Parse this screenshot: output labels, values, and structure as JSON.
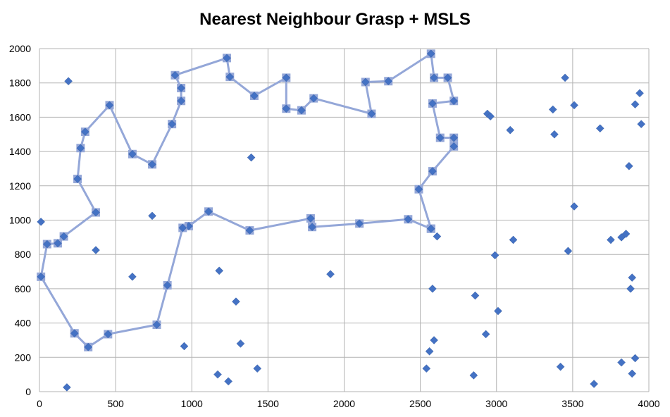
{
  "chart_data": {
    "type": "scatter",
    "title": "Nearest Neighbour Grasp + MSLS",
    "xlim": [
      0,
      4000
    ],
    "ylim": [
      0,
      2000
    ],
    "x_ticks": [
      0,
      500,
      1000,
      1500,
      2000,
      2500,
      3000,
      3500,
      4000
    ],
    "y_ticks": [
      0,
      200,
      400,
      600,
      800,
      1000,
      1200,
      1400,
      1600,
      1800,
      2000
    ],
    "grid": true,
    "tour": [
      [
        2570,
        950
      ],
      [
        2420,
        1005
      ],
      [
        2100,
        980
      ],
      [
        1790,
        960
      ],
      [
        1780,
        1010
      ],
      [
        1380,
        940
      ],
      [
        1110,
        1050
      ],
      [
        980,
        965
      ],
      [
        940,
        955
      ],
      [
        840,
        620
      ],
      [
        770,
        390
      ],
      [
        450,
        335
      ],
      [
        320,
        260
      ],
      [
        230,
        340
      ],
      [
        10,
        670
      ],
      [
        50,
        860
      ],
      [
        120,
        865
      ],
      [
        160,
        905
      ],
      [
        370,
        1045
      ],
      [
        250,
        1240
      ],
      [
        270,
        1420
      ],
      [
        300,
        1515
      ],
      [
        460,
        1670
      ],
      [
        610,
        1385
      ],
      [
        740,
        1325
      ],
      [
        870,
        1560
      ],
      [
        930,
        1695
      ],
      [
        930,
        1770
      ],
      [
        890,
        1845
      ],
      [
        1230,
        1945
      ],
      [
        1250,
        1835
      ],
      [
        1410,
        1725
      ],
      [
        1620,
        1830
      ],
      [
        1620,
        1650
      ],
      [
        1720,
        1640
      ],
      [
        1800,
        1710
      ],
      [
        2180,
        1620
      ],
      [
        2140,
        1805
      ],
      [
        2290,
        1810
      ],
      [
        2570,
        1970
      ],
      [
        2590,
        1830
      ],
      [
        2680,
        1830
      ],
      [
        2720,
        1695
      ],
      [
        2580,
        1680
      ],
      [
        2630,
        1480
      ],
      [
        2720,
        1480
      ],
      [
        2720,
        1430
      ],
      [
        2580,
        1285
      ],
      [
        2490,
        1180
      ],
      [
        2570,
        950
      ]
    ],
    "other_points": [
      [
        190,
        1810
      ],
      [
        10,
        990
      ],
      [
        370,
        825
      ],
      [
        180,
        25
      ],
      [
        610,
        670
      ],
      [
        740,
        1025
      ],
      [
        950,
        265
      ],
      [
        1180,
        705
      ],
      [
        1170,
        100
      ],
      [
        1240,
        60
      ],
      [
        1290,
        525
      ],
      [
        1320,
        280
      ],
      [
        1390,
        1365
      ],
      [
        1430,
        135
      ],
      [
        1910,
        685
      ],
      [
        2540,
        135
      ],
      [
        2560,
        235
      ],
      [
        2580,
        600
      ],
      [
        2590,
        300
      ],
      [
        2610,
        905
      ],
      [
        2850,
        95
      ],
      [
        2860,
        560
      ],
      [
        2930,
        335
      ],
      [
        2940,
        1620
      ],
      [
        2960,
        1605
      ],
      [
        2990,
        795
      ],
      [
        3010,
        470
      ],
      [
        3090,
        1525
      ],
      [
        3110,
        885
      ],
      [
        3370,
        1645
      ],
      [
        3380,
        1500
      ],
      [
        3420,
        145
      ],
      [
        3450,
        1830
      ],
      [
        3470,
        820
      ],
      [
        3510,
        1670
      ],
      [
        3510,
        1080
      ],
      [
        3640,
        45
      ],
      [
        3680,
        1535
      ],
      [
        3750,
        885
      ],
      [
        3820,
        900
      ],
      [
        3820,
        170
      ],
      [
        3850,
        920
      ],
      [
        3870,
        1315
      ],
      [
        3880,
        600
      ],
      [
        3890,
        665
      ],
      [
        3890,
        105
      ],
      [
        3910,
        1675
      ],
      [
        3910,
        195
      ],
      [
        3940,
        1740
      ],
      [
        3950,
        1560
      ]
    ]
  }
}
